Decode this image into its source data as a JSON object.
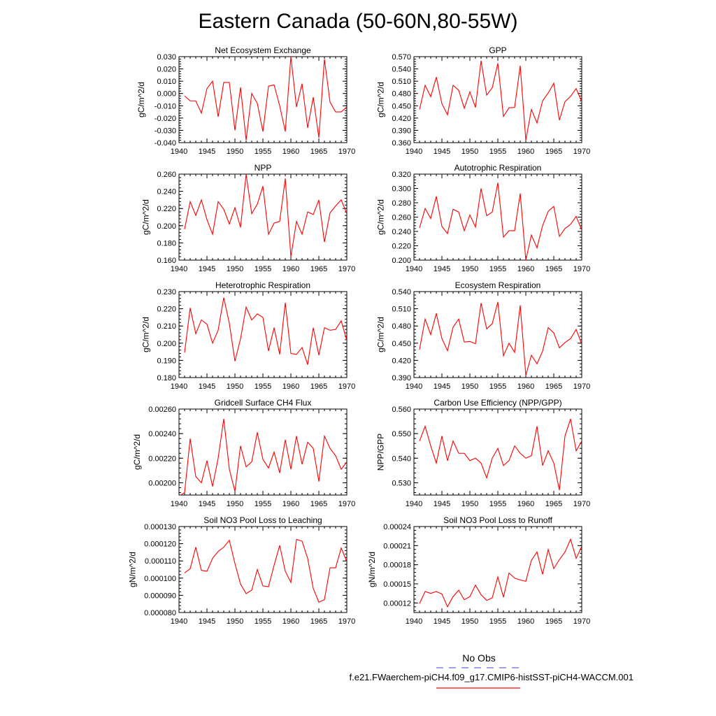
{
  "title": "Eastern Canada (50-60N,80-55W)",
  "legend": {
    "obs_label": "No Obs",
    "case_label": "f.e21.FWaerchem-piCH4.f09_g17.CMIP6-histSST-piCH4-WACCM.001",
    "obs_color": "#6b6bd6",
    "case_color": "#ff0000"
  },
  "colors": {
    "line": "#ff0000",
    "axis": "#000000"
  },
  "chart_data": [
    {
      "type": "line",
      "title": "Net Ecosystem Exchange",
      "ylabel": "gC/m^2/d",
      "xlim": [
        1940,
        1970
      ],
      "ylim": [
        -0.04,
        0.03
      ],
      "xticks": [
        1940,
        1945,
        1950,
        1955,
        1960,
        1965,
        1970
      ],
      "yticks": [
        "-0.040",
        "-0.030",
        "-0.020",
        "-0.010",
        "0.000",
        "0.010",
        "0.020",
        "0.030"
      ],
      "x": [
        1941,
        1942,
        1943,
        1944,
        1945,
        1946,
        1947,
        1948,
        1949,
        1950,
        1951,
        1952,
        1953,
        1954,
        1955,
        1956,
        1957,
        1958,
        1959,
        1960,
        1961,
        1962,
        1963,
        1964,
        1965,
        1966,
        1967,
        1968,
        1969,
        1970
      ],
      "series": [
        {
          "values": [
            -0.002,
            -0.006,
            -0.006,
            -0.016,
            0.004,
            0.01,
            -0.019,
            0.009,
            0.009,
            -0.03,
            0.005,
            -0.038,
            0.0,
            -0.008,
            -0.031,
            0.006,
            0.007,
            -0.01,
            -0.031,
            0.03,
            -0.011,
            0.008,
            -0.028,
            -0.003,
            -0.036,
            0.028,
            -0.007,
            -0.015,
            -0.015,
            -0.011
          ]
        }
      ]
    },
    {
      "type": "line",
      "title": "GPP",
      "ylabel": "gC/m^2/d",
      "xlim": [
        1940,
        1970
      ],
      "ylim": [
        0.36,
        0.57
      ],
      "xticks": [
        1940,
        1945,
        1950,
        1955,
        1960,
        1965,
        1970
      ],
      "yticks": [
        "0.360",
        "0.390",
        "0.420",
        "0.450",
        "0.480",
        "0.510",
        "0.540",
        "0.570"
      ],
      "x": [
        1941,
        1942,
        1943,
        1944,
        1945,
        1946,
        1947,
        1948,
        1949,
        1950,
        1951,
        1952,
        1953,
        1954,
        1955,
        1956,
        1957,
        1958,
        1959,
        1960,
        1961,
        1962,
        1963,
        1964,
        1965,
        1966,
        1967,
        1968,
        1969,
        1970
      ],
      "series": [
        {
          "values": [
            0.441,
            0.5,
            0.472,
            0.52,
            0.455,
            0.428,
            0.5,
            0.488,
            0.444,
            0.484,
            0.446,
            0.56,
            0.476,
            0.494,
            0.554,
            0.424,
            0.445,
            0.446,
            0.548,
            0.366,
            0.441,
            0.408,
            0.462,
            0.481,
            0.505,
            0.415,
            0.46,
            0.473,
            0.492,
            0.46
          ]
        }
      ]
    },
    {
      "type": "line",
      "title": "NPP",
      "ylabel": "gC/m^2/d",
      "xlim": [
        1940,
        1970
      ],
      "ylim": [
        0.16,
        0.26
      ],
      "xticks": [
        1940,
        1945,
        1950,
        1955,
        1960,
        1965,
        1970
      ],
      "yticks": [
        "0.160",
        "0.180",
        "0.200",
        "0.220",
        "0.240",
        "0.260"
      ],
      "x": [
        1941,
        1942,
        1943,
        1944,
        1945,
        1946,
        1947,
        1948,
        1949,
        1950,
        1951,
        1952,
        1953,
        1954,
        1955,
        1956,
        1957,
        1958,
        1959,
        1960,
        1961,
        1962,
        1963,
        1964,
        1965,
        1966,
        1967,
        1968,
        1969,
        1970
      ],
      "series": [
        {
          "values": [
            0.196,
            0.228,
            0.212,
            0.23,
            0.207,
            0.19,
            0.228,
            0.219,
            0.202,
            0.221,
            0.198,
            0.26,
            0.214,
            0.225,
            0.246,
            0.19,
            0.203,
            0.205,
            0.255,
            0.164,
            0.205,
            0.19,
            0.216,
            0.213,
            0.23,
            0.181,
            0.215,
            0.223,
            0.23,
            0.214
          ]
        }
      ]
    },
    {
      "type": "line",
      "title": "Autotrophic Respiration",
      "ylabel": "gC/m^2/d",
      "xlim": [
        1940,
        1970
      ],
      "ylim": [
        0.2,
        0.32
      ],
      "xticks": [
        1940,
        1945,
        1950,
        1955,
        1960,
        1965,
        1970
      ],
      "yticks": [
        "0.200",
        "0.220",
        "0.240",
        "0.260",
        "0.280",
        "0.300",
        "0.320"
      ],
      "x": [
        1941,
        1942,
        1943,
        1944,
        1945,
        1946,
        1947,
        1948,
        1949,
        1950,
        1951,
        1952,
        1953,
        1954,
        1955,
        1956,
        1957,
        1958,
        1959,
        1960,
        1961,
        1962,
        1963,
        1964,
        1965,
        1966,
        1967,
        1968,
        1969,
        1970
      ],
      "series": [
        {
          "values": [
            0.245,
            0.272,
            0.258,
            0.289,
            0.247,
            0.237,
            0.271,
            0.267,
            0.241,
            0.263,
            0.246,
            0.3,
            0.262,
            0.267,
            0.308,
            0.232,
            0.241,
            0.241,
            0.293,
            0.2,
            0.235,
            0.217,
            0.248,
            0.268,
            0.275,
            0.233,
            0.244,
            0.25,
            0.261,
            0.242
          ]
        }
      ]
    },
    {
      "type": "line",
      "title": "Heterotrophic Respiration",
      "ylabel": "gC/m^2/d",
      "xlim": [
        1940,
        1970
      ],
      "ylim": [
        0.18,
        0.23
      ],
      "xticks": [
        1940,
        1945,
        1950,
        1955,
        1960,
        1965,
        1970
      ],
      "yticks": [
        "0.180",
        "0.190",
        "0.200",
        "0.210",
        "0.220",
        "0.230"
      ],
      "x": [
        1941,
        1942,
        1943,
        1944,
        1945,
        1946,
        1947,
        1948,
        1949,
        1950,
        1951,
        1952,
        1953,
        1954,
        1955,
        1956,
        1957,
        1958,
        1959,
        1960,
        1961,
        1962,
        1963,
        1964,
        1965,
        1966,
        1967,
        1968,
        1969,
        1970
      ],
      "series": [
        {
          "values": [
            0.1945,
            0.2205,
            0.2055,
            0.2135,
            0.211,
            0.2,
            0.2075,
            0.2265,
            0.2115,
            0.1895,
            0.2025,
            0.221,
            0.2135,
            0.217,
            0.215,
            0.1955,
            0.209,
            0.1935,
            0.2235,
            0.194,
            0.1935,
            0.1975,
            0.1875,
            0.209,
            0.193,
            0.209,
            0.2075,
            0.208,
            0.213,
            0.2015
          ]
        }
      ]
    },
    {
      "type": "line",
      "title": "Ecosystem Respiration",
      "ylabel": "gC/m^2/d",
      "xlim": [
        1940,
        1970
      ],
      "ylim": [
        0.39,
        0.54
      ],
      "xticks": [
        1940,
        1945,
        1950,
        1955,
        1960,
        1965,
        1970
      ],
      "yticks": [
        "0.390",
        "0.420",
        "0.450",
        "0.480",
        "0.510",
        "0.540"
      ],
      "x": [
        1941,
        1942,
        1943,
        1944,
        1945,
        1946,
        1947,
        1948,
        1949,
        1950,
        1951,
        1952,
        1953,
        1954,
        1955,
        1956,
        1957,
        1958,
        1959,
        1960,
        1961,
        1962,
        1963,
        1964,
        1965,
        1966,
        1967,
        1968,
        1969,
        1970
      ],
      "series": [
        {
          "values": [
            0.439,
            0.492,
            0.465,
            0.502,
            0.458,
            0.437,
            0.478,
            0.492,
            0.452,
            0.453,
            0.449,
            0.52,
            0.475,
            0.484,
            0.522,
            0.428,
            0.45,
            0.434,
            0.516,
            0.394,
            0.429,
            0.414,
            0.436,
            0.477,
            0.468,
            0.442,
            0.451,
            0.458,
            0.474,
            0.448
          ]
        }
      ]
    },
    {
      "type": "line",
      "title": "Gridcell Surface CH4 Flux",
      "ylabel": "gC/m^2/d",
      "xlim": [
        1940,
        1970
      ],
      "ylim": [
        0.0019,
        0.0026
      ],
      "xticks": [
        1940,
        1945,
        1950,
        1955,
        1960,
        1965,
        1970
      ],
      "yticks": [
        "0.00200",
        "0.00220",
        "0.00240",
        "0.00260"
      ],
      "x": [
        1940,
        1941,
        1942,
        1943,
        1944,
        1945,
        1946,
        1947,
        1948,
        1949,
        1950,
        1951,
        1952,
        1953,
        1954,
        1955,
        1956,
        1957,
        1958,
        1959,
        1960,
        1961,
        1962,
        1963,
        1964,
        1965,
        1966,
        1967,
        1968,
        1969,
        1970
      ],
      "series": [
        {
          "values": [
            0.00189,
            0.00192,
            0.00236,
            0.00205,
            0.002,
            0.00218,
            0.00197,
            0.0022,
            0.00252,
            0.00211,
            0.00193,
            0.0023,
            0.00213,
            0.00217,
            0.00241,
            0.00219,
            0.00212,
            0.00225,
            0.00208,
            0.00235,
            0.00211,
            0.00238,
            0.00215,
            0.00233,
            0.00228,
            0.00201,
            0.00238,
            0.00228,
            0.00222,
            0.00211,
            0.00217
          ]
        }
      ]
    },
    {
      "type": "line",
      "title": "Carbon Use Efficiency (NPP/GPP)",
      "ylabel": "NPP/GPP",
      "xlim": [
        1940,
        1970
      ],
      "ylim": [
        0.525,
        0.56
      ],
      "xticks": [
        1940,
        1945,
        1950,
        1955,
        1960,
        1965,
        1970
      ],
      "yticks": [
        "0.530",
        "0.540",
        "0.550",
        "0.560"
      ],
      "x": [
        1941,
        1942,
        1943,
        1944,
        1945,
        1946,
        1947,
        1948,
        1949,
        1950,
        1951,
        1952,
        1953,
        1954,
        1955,
        1956,
        1957,
        1958,
        1959,
        1960,
        1961,
        1962,
        1963,
        1964,
        1965,
        1966,
        1967,
        1968,
        1969,
        1970
      ],
      "series": [
        {
          "values": [
            0.547,
            0.553,
            0.545,
            0.538,
            0.549,
            0.539,
            0.547,
            0.542,
            0.542,
            0.539,
            0.54,
            0.538,
            0.532,
            0.54,
            0.544,
            0.537,
            0.539,
            0.545,
            0.542,
            0.54,
            0.541,
            0.553,
            0.537,
            0.543,
            0.538,
            0.527,
            0.549,
            0.556,
            0.543,
            0.547
          ]
        }
      ]
    },
    {
      "type": "line",
      "title": "Soil NO3 Pool Loss to Leaching",
      "ylabel": "gN/m^2/d",
      "xlim": [
        1940,
        1970
      ],
      "ylim": [
        8e-05,
        0.00013
      ],
      "xticks": [
        1940,
        1945,
        1950,
        1955,
        1960,
        1965,
        1970
      ],
      "yticks": [
        "0.000080",
        "0.000090",
        "0.000100",
        "0.000110",
        "0.000120",
        "0.000130"
      ],
      "x": [
        1941,
        1942,
        1943,
        1944,
        1945,
        1946,
        1947,
        1948,
        1949,
        1950,
        1951,
        1952,
        1953,
        1954,
        1955,
        1956,
        1957,
        1958,
        1959,
        1960,
        1961,
        1962,
        1963,
        1964,
        1965,
        1966,
        1967,
        1968,
        1969,
        1970
      ],
      "series": [
        {
          "values": [
            0.000103,
            0.0001055,
            0.000118,
            0.0001045,
            0.000104,
            0.0001115,
            0.0001155,
            0.000118,
            0.000122,
            0.0001085,
            9.65e-05,
            9.1e-05,
            9.3e-05,
            0.000105,
            9.55e-05,
            9.5e-05,
            0.0001075,
            0.000119,
            0.000104,
            9.75e-05,
            0.0001225,
            0.0001215,
            0.0001115,
            9.4e-05,
            8.6e-05,
            8.75e-05,
            0.000106,
            0.000106,
            0.0001175,
            0.0001095
          ]
        }
      ]
    },
    {
      "type": "line",
      "title": "Soil NO3 Pool Loss to Runoff",
      "ylabel": "gN/m^2/d",
      "xlim": [
        1940,
        1970
      ],
      "ylim": [
        0.000105,
        0.00024
      ],
      "xticks": [
        1940,
        1945,
        1950,
        1955,
        1960,
        1965,
        1970
      ],
      "yticks": [
        "0.00012",
        "0.00015",
        "0.00018",
        "0.00021",
        "0.00024"
      ],
      "x": [
        1941,
        1942,
        1943,
        1944,
        1945,
        1946,
        1947,
        1948,
        1949,
        1950,
        1951,
        1952,
        1953,
        1954,
        1955,
        1956,
        1957,
        1958,
        1959,
        1960,
        1961,
        1962,
        1963,
        1964,
        1965,
        1966,
        1967,
        1968,
        1969,
        1970
      ],
      "series": [
        {
          "values": [
            0.000119,
            0.000138,
            0.000135,
            0.000138,
            0.000134,
            0.000114,
            0.00013,
            0.00014,
            0.000125,
            0.00013,
            0.000148,
            0.000133,
            0.000124,
            0.000128,
            0.000161,
            0.000129,
            0.000167,
            0.000159,
            0.000156,
            0.000154,
            0.000187,
            0.0002,
            0.000165,
            0.000204,
            0.000174,
            0.000188,
            0.0002,
            0.00022,
            0.00019,
            0.000209
          ]
        }
      ]
    }
  ]
}
